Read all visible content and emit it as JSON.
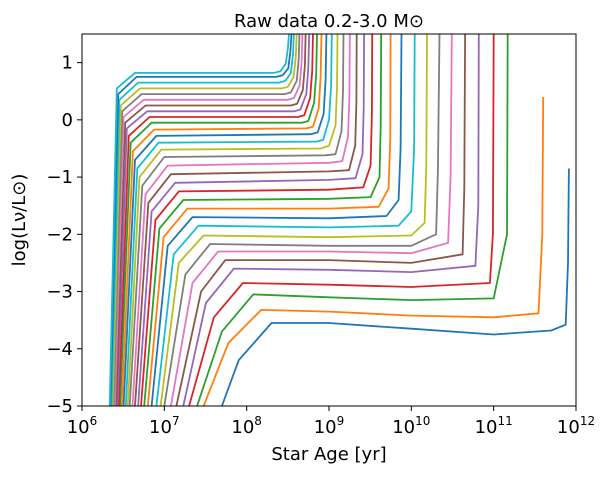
{
  "chart_data": {
    "type": "line",
    "title": "Raw data 0.2-3.0 M⊙",
    "xlabel": "Star Age [yr]",
    "ylabel": "log(Lν/L⊙)",
    "xscale": "log",
    "xlim": [
      1000000.0,
      1000000000000.0
    ],
    "ylim": [
      -5,
      1.5
    ],
    "xticks": [
      {
        "value": 1000000.0,
        "label": "10^6"
      },
      {
        "value": 10000000.0,
        "label": "10^7"
      },
      {
        "value": 100000000.0,
        "label": "10^8"
      },
      {
        "value": 1000000000.0,
        "label": "10^9"
      },
      {
        "value": 10000000000.0,
        "label": "10^10"
      },
      {
        "value": 100000000000.0,
        "label": "10^11"
      },
      {
        "value": 1000000000000.0,
        "label": "10^12"
      }
    ],
    "yticks": [
      1,
      0,
      -1,
      -2,
      -3,
      -4,
      -5
    ],
    "grid": false,
    "legend": "none",
    "palette": [
      "#1f77b4",
      "#ff7f0e",
      "#2ca02c",
      "#d62728",
      "#9467bd",
      "#8c564b",
      "#e377c2",
      "#7f7f7f",
      "#bcbd22",
      "#17becf"
    ],
    "series": [
      {
        "color": "#1f77b4",
        "x": [
          50000000.0,
          80000000.0,
          200000000.0,
          1000000000.0,
          10000000000.0,
          100000000000.0,
          500000000000.0,
          750000000000.0,
          800000000000.0,
          820000000000.0
        ],
        "y": [
          -5,
          -4.2,
          -3.55,
          -3.55,
          -3.65,
          -3.75,
          -3.68,
          -3.58,
          -2.5,
          -0.85
        ]
      },
      {
        "color": "#ff7f0e",
        "x": [
          30000000.0,
          60000000.0,
          150000000.0,
          1000000000.0,
          10000000000.0,
          100000000000.0,
          350000000000.0,
          390000000000.0,
          400000000000.0
        ],
        "y": [
          -5,
          -3.9,
          -3.32,
          -3.35,
          -3.42,
          -3.45,
          -3.38,
          -2.0,
          0.4
        ]
      },
      {
        "color": "#2ca02c",
        "x": [
          25000000.0,
          50000000.0,
          120000000.0,
          1000000000.0,
          10000000000.0,
          100000000000.0,
          145000000000.0,
          148000000000.0
        ],
        "y": [
          -5,
          -3.7,
          -3.05,
          -3.1,
          -3.15,
          -3.12,
          -2.0,
          1.5
        ]
      },
      {
        "color": "#d62728",
        "x": [
          20000000.0,
          40000000.0,
          90000000.0,
          1000000000.0,
          10000000000.0,
          90000000000.0,
          98000000000.0,
          100000000000.0
        ],
        "y": [
          -5,
          -3.45,
          -2.85,
          -2.88,
          -2.92,
          -2.85,
          -2.0,
          1.5
        ]
      },
      {
        "color": "#9467bd",
        "x": [
          17000000.0,
          32000000.0,
          70000000.0,
          1000000000.0,
          10000000000.0,
          60000000000.0,
          65000000000.0,
          66000000000.0
        ],
        "y": [
          -5,
          -3.2,
          -2.6,
          -2.62,
          -2.66,
          -2.55,
          -1.5,
          1.5
        ]
      },
      {
        "color": "#8c564b",
        "x": [
          14000000.0,
          28000000.0,
          55000000.0,
          1000000000.0,
          10000000000.0,
          42000000000.0,
          44000000000.0,
          45000000000.0
        ],
        "y": [
          -5,
          -3.0,
          -2.45,
          -2.45,
          -2.5,
          -2.35,
          -1.2,
          1.5
        ]
      },
      {
        "color": "#e377c2",
        "x": [
          12000000.0,
          22000000.0,
          45000000.0,
          1000000000.0,
          10000000000.0,
          28000000000.0,
          30000000000.0,
          31000000000.0
        ],
        "y": [
          -5,
          -2.85,
          -2.3,
          -2.3,
          -2.33,
          -2.15,
          -1.0,
          1.5
        ]
      },
      {
        "color": "#7f7f7f",
        "x": [
          10000000.0,
          18000000.0,
          36000000.0,
          1000000000.0,
          10000000000.0,
          20000000000.0,
          21000000000.0,
          22000000000.0
        ],
        "y": [
          -5,
          -2.7,
          -2.17,
          -2.2,
          -2.2,
          -2.0,
          -0.9,
          1.5
        ]
      },
      {
        "color": "#bcbd22",
        "x": [
          9000000.0,
          15000000.0,
          30000000.0,
          1000000000.0,
          10000000000.0,
          14500000000.0,
          15200000000.0,
          15500000000.0
        ],
        "y": [
          -5,
          -2.5,
          -2.02,
          -2.05,
          -2.02,
          -1.8,
          -0.8,
          1.5
        ]
      },
      {
        "color": "#17becf",
        "x": [
          8000000.0,
          13000000.0,
          26000000.0,
          1000000000.0,
          7000000000.0,
          10000000000.0,
          10800000000.0,
          11000000000.0
        ],
        "y": [
          -5,
          -2.35,
          -1.85,
          -1.88,
          -1.85,
          -1.6,
          -0.5,
          1.5
        ]
      },
      {
        "color": "#1f77b4",
        "x": [
          7000000.0,
          11000000.0,
          22000000.0,
          1000000000.0,
          5000000000.0,
          7000000000.0,
          7400000000.0,
          7600000000.0
        ],
        "y": [
          -5,
          -2.2,
          -1.7,
          -1.72,
          -1.68,
          -1.4,
          -0.5,
          1.5
        ]
      },
      {
        "color": "#ff7f0e",
        "x": [
          6300000.0,
          9800000.0,
          19000000.0,
          1000000000.0,
          4000000000.0,
          5300000000.0,
          5550000000.0,
          5600000000.0
        ],
        "y": [
          -5,
          -2.05,
          -1.55,
          -1.55,
          -1.52,
          -1.2,
          -0.3,
          1.5
        ]
      },
      {
        "color": "#2ca02c",
        "x": [
          5700000.0,
          8700000.0,
          17000000.0,
          1000000000.0,
          3200000000.0,
          4100000000.0,
          4250000000.0,
          4300000000.0
        ],
        "y": [
          -5,
          -1.9,
          -1.4,
          -1.38,
          -1.35,
          -1.0,
          -0.1,
          1.5
        ]
      },
      {
        "color": "#d62728",
        "x": [
          5200000.0,
          7800000.0,
          15000000.0,
          1000000000.0,
          2600000000.0,
          3200000000.0,
          3320000000.0,
          3350000000.0
        ],
        "y": [
          -5,
          -1.75,
          -1.25,
          -1.22,
          -1.18,
          -0.8,
          0.1,
          1.5
        ]
      },
      {
        "color": "#9467bd",
        "x": [
          4800000.0,
          7000000.0,
          13500000.0,
          1000000000.0,
          2100000000.0,
          2550000000.0,
          2640000000.0,
          2670000000.0
        ],
        "y": [
          -5,
          -1.6,
          -1.1,
          -1.05,
          -1.02,
          -0.6,
          0.2,
          1.5
        ]
      },
      {
        "color": "#8c564b",
        "x": [
          4400000.0,
          6400000.0,
          12000000.0,
          1000000000.0,
          1750000000.0,
          2080000000.0,
          2150000000.0,
          2170000000.0
        ],
        "y": [
          -5,
          -1.45,
          -0.95,
          -0.9,
          -0.88,
          -0.45,
          0.3,
          1.5
        ]
      },
      {
        "color": "#e377c2",
        "x": [
          4100000.0,
          5900000.0,
          11000000.0,
          1000000000.0,
          1450000000.0,
          1700000000.0,
          1770000000.0,
          1790000000.0
        ],
        "y": [
          -5,
          -1.3,
          -0.8,
          -0.75,
          -0.72,
          -0.3,
          0.4,
          1.5
        ]
      },
      {
        "color": "#7f7f7f",
        "x": [
          3800000.0,
          5400000.0,
          10000000.0,
          900000000.0,
          1200000000.0,
          1420000000.0,
          1480000000.0,
          1500000000.0
        ],
        "y": [
          -5,
          -1.15,
          -0.65,
          -0.62,
          -0.6,
          -0.2,
          0.5,
          1.5
        ]
      },
      {
        "color": "#bcbd22",
        "x": [
          3600000.0,
          5000000.0,
          9200000.0,
          800000000.0,
          1000000000.0,
          1200000000.0,
          1250000000.0,
          1270000000.0
        ],
        "y": [
          -5,
          -1.0,
          -0.52,
          -0.5,
          -0.45,
          -0.1,
          0.55,
          1.5
        ]
      },
      {
        "color": "#17becf",
        "x": [
          3400000.0,
          4700000.0,
          8500000.0,
          700000000.0,
          850000000.0,
          1000000000.0,
          1060000000.0,
          1080000000.0
        ],
        "y": [
          -5,
          -0.85,
          -0.4,
          -0.38,
          -0.35,
          0.0,
          0.6,
          1.5
        ]
      },
      {
        "color": "#1f77b4",
        "x": [
          3200000.0,
          4400000.0,
          8000000.0,
          600000000.0,
          730000000.0,
          860000000.0,
          910000000.0,
          930000000.0
        ],
        "y": [
          -5,
          -0.7,
          -0.28,
          -0.25,
          -0.22,
          0.1,
          0.7,
          1.5
        ]
      },
      {
        "color": "#ff7f0e",
        "x": [
          3050000.0,
          4150000.0,
          7500000.0,
          530000000.0,
          640000000.0,
          750000000.0,
          790000000.0,
          810000000.0
        ],
        "y": [
          -5,
          -0.55,
          -0.17,
          -0.15,
          -0.12,
          0.2,
          0.75,
          1.5
        ]
      },
      {
        "color": "#2ca02c",
        "x": [
          2900000.0,
          3900000.0,
          7000000.0,
          470000000.0,
          560000000.0,
          660000000.0,
          700000000.0,
          715000000.0
        ],
        "y": [
          -5,
          -0.4,
          -0.05,
          -0.05,
          -0.02,
          0.3,
          0.8,
          1.5
        ]
      },
      {
        "color": "#d62728",
        "x": [
          2800000.0,
          3700000.0,
          6600000.0,
          420000000.0,
          500000000.0,
          590000000.0,
          625000000.0,
          640000000.0
        ],
        "y": [
          -5,
          -0.28,
          0.05,
          0.05,
          0.08,
          0.38,
          0.85,
          1.5
        ]
      },
      {
        "color": "#9467bd",
        "x": [
          2700000.0,
          3500000.0,
          6200000.0,
          380000000.0,
          450000000.0,
          530000000.0,
          560000000.0,
          575000000.0
        ],
        "y": [
          -5,
          -0.15,
          0.15,
          0.15,
          0.18,
          0.45,
          0.9,
          1.5
        ]
      },
      {
        "color": "#8c564b",
        "x": [
          2600000.0,
          3350000.0,
          5900000.0,
          345000000.0,
          410000000.0,
          480000000.0,
          510000000.0,
          520000000.0
        ],
        "y": [
          -5,
          -0.05,
          0.25,
          0.25,
          0.28,
          0.52,
          0.95,
          1.5
        ]
      },
      {
        "color": "#e377c2",
        "x": [
          2500000.0,
          3200000.0,
          5600000.0,
          315000000.0,
          375000000.0,
          440000000.0,
          465000000.0,
          475000000.0
        ],
        "y": [
          -5,
          0.05,
          0.35,
          0.35,
          0.38,
          0.6,
          1.0,
          1.5
        ]
      },
      {
        "color": "#7f7f7f",
        "x": [
          2420000.0,
          3080000.0,
          5300000.0,
          290000000.0,
          345000000.0,
          405000000.0,
          428000000.0,
          438000000.0
        ],
        "y": [
          -5,
          0.15,
          0.45,
          0.45,
          0.48,
          0.68,
          1.05,
          1.5
        ]
      },
      {
        "color": "#bcbd22",
        "x": [
          2350000.0,
          2960000.0,
          5050000.0,
          268000000.0,
          318000000.0,
          372000000.0,
          395000000.0,
          405000000.0
        ],
        "y": [
          -5,
          0.25,
          0.55,
          0.55,
          0.58,
          0.75,
          1.1,
          1.5
        ]
      },
      {
        "color": "#17becf",
        "x": [
          2280000.0,
          2850000.0,
          4800000.0,
          248000000.0,
          295000000.0,
          345000000.0,
          365000000.0,
          375000000.0
        ],
        "y": [
          -5,
          0.35,
          0.65,
          0.65,
          0.68,
          0.82,
          1.15,
          1.5
        ]
      },
      {
        "color": "#1f77b4",
        "x": [
          2220000.0,
          2750000.0,
          4600000.0,
          230000000.0,
          275000000.0,
          320000000.0,
          340000000.0,
          350000000.0
        ],
        "y": [
          -5,
          0.45,
          0.75,
          0.75,
          0.78,
          0.9,
          1.2,
          1.5
        ]
      },
      {
        "color": "#17becf",
        "x": [
          2170000.0,
          2650000.0,
          4400000.0,
          215000000.0,
          257000000.0,
          298000000.0,
          317000000.0,
          327000000.0
        ],
        "y": [
          -5,
          0.55,
          0.82,
          0.82,
          0.85,
          0.98,
          1.25,
          1.5
        ]
      }
    ]
  }
}
